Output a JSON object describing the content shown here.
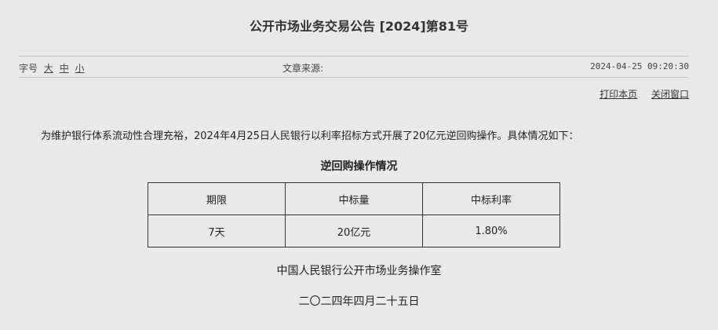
{
  "title": "公开市场业务交易公告 [2024]第81号",
  "meta": {
    "font_size_label": "字号",
    "font_sizes": [
      "大",
      "中",
      "小"
    ],
    "source_label": "文章来源:",
    "datetime": "2024-04-25 09:20:30"
  },
  "actions": {
    "print": "打印本页",
    "close": "关闭窗口"
  },
  "body": "为维护银行体系流动性合理充裕，2024年4月25日人民银行以利率招标方式开展了20亿元逆回购操作。具体情况如下：",
  "table": {
    "caption": "逆回购操作情况",
    "headers": [
      "期限",
      "中标量",
      "中标利率"
    ],
    "rows": [
      [
        "7天",
        "20亿元",
        "1.80%"
      ]
    ]
  },
  "signature": {
    "org": "中国人民银行公开市场业务操作室",
    "date": "二〇二四年四月二十五日"
  }
}
